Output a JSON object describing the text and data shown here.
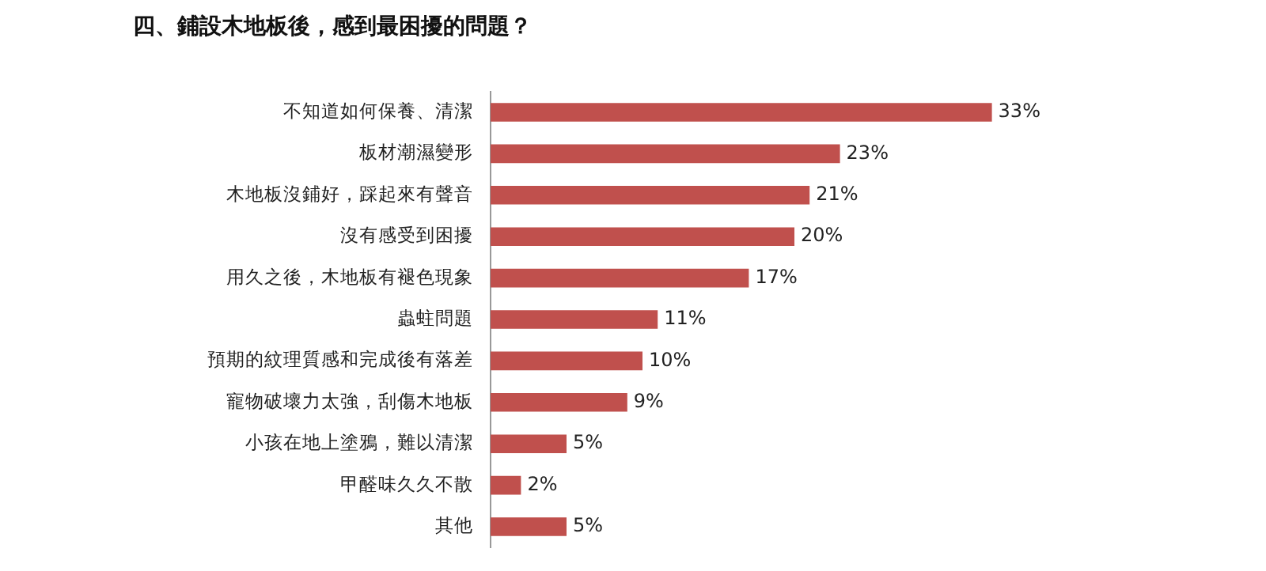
{
  "chart_data": {
    "type": "bar",
    "orientation": "horizontal",
    "title": "四、鋪設木地板後，感到最困擾的問題？",
    "categories": [
      "不知道如何保養、清潔",
      "板材潮濕變形",
      "木地板沒鋪好，踩起來有聲音",
      "沒有感受到困擾",
      "用久之後，木地板有褪色現象",
      "蟲蛀問題",
      "預期的紋理質感和完成後有落差",
      "寵物破壞力太強，刮傷木地板",
      "小孩在地上塗鴉，難以清潔",
      "甲醛味久久不散",
      "其他"
    ],
    "values": [
      33,
      23,
      21,
      20,
      17,
      11,
      10,
      9,
      5,
      2,
      5
    ],
    "value_labels": [
      "33%",
      "23%",
      "21%",
      "20%",
      "17%",
      "11%",
      "10%",
      "9%",
      "5%",
      "2%",
      "5%"
    ],
    "color": "#c0504d",
    "legend": false
  }
}
